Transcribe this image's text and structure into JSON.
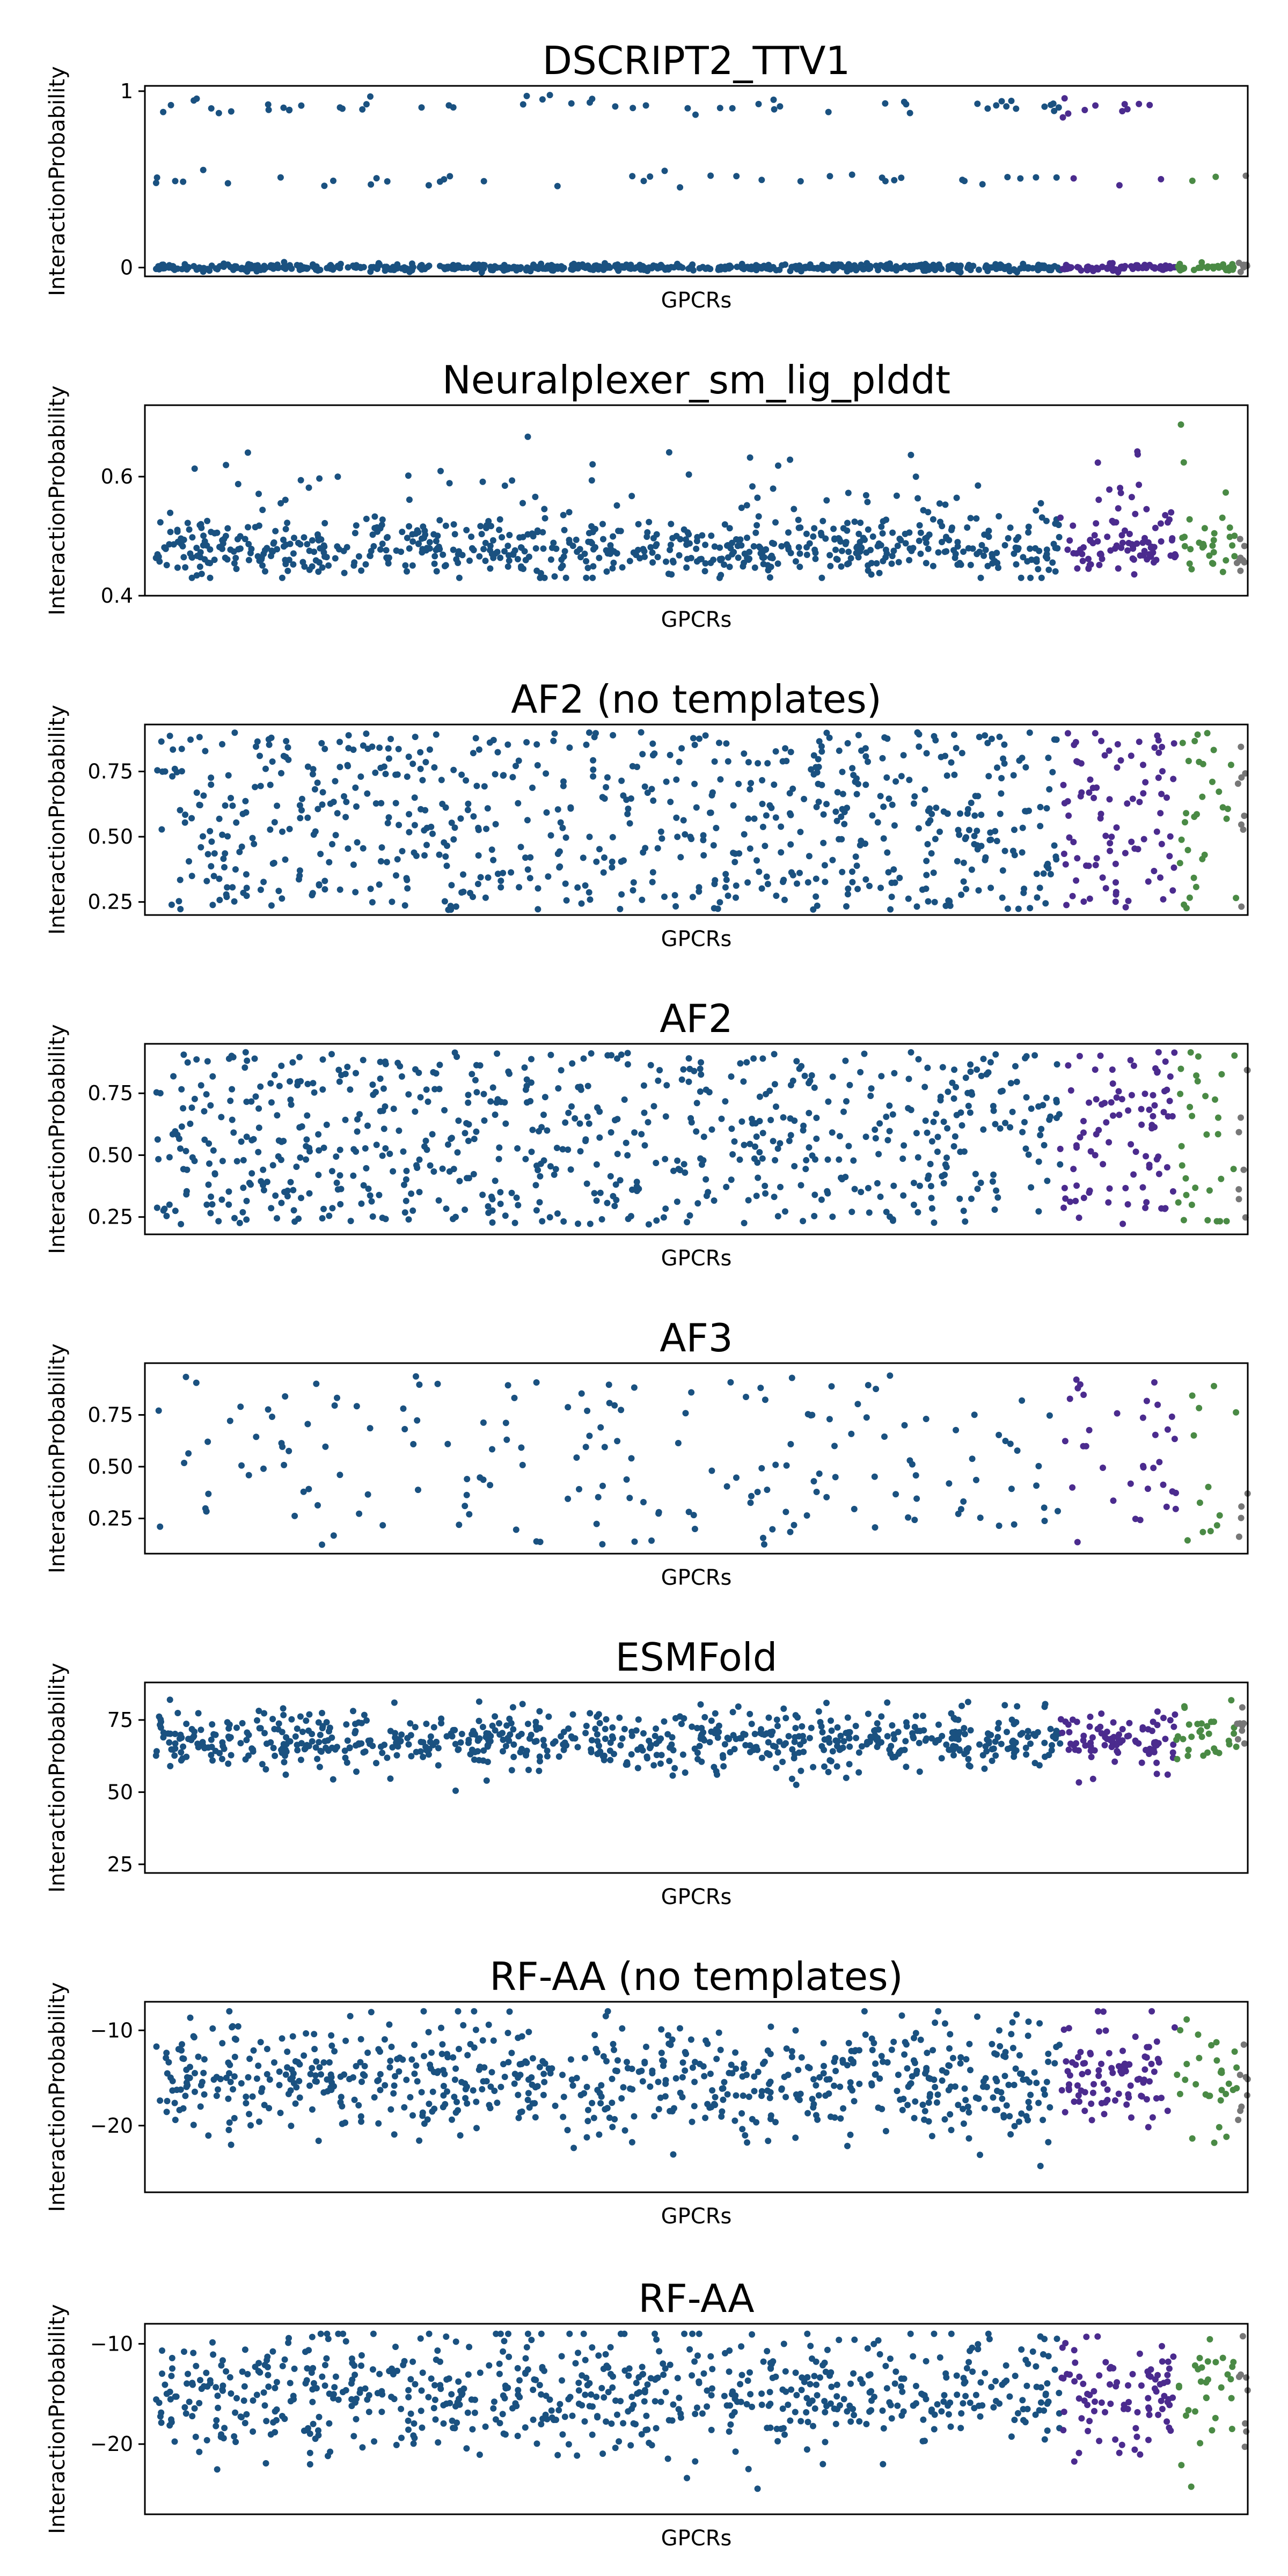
{
  "figure": {
    "panel_count": 8,
    "series_colors": {
      "blue": "#1a5180",
      "purple": "#4b2b8e",
      "green": "#4a8a45",
      "gray": "#777777"
    },
    "point_counts": {
      "blue_dense": 700,
      "blue_sparse": 180,
      "purple_dense": 90,
      "purple_sparse": 35,
      "green_dense": 30,
      "green_sparse": 12,
      "gray_dense": 8,
      "gray_sparse": 4
    }
  },
  "chart_data": [
    {
      "type": "scatter",
      "title": "DSCRIPT2_TTV1",
      "xlabel": "GPCRs",
      "ylabel": "InteractionProbability",
      "ylim": [
        -0.05,
        1.03
      ],
      "yticks": [
        0,
        1
      ],
      "yticklabels": [
        "0",
        "1"
      ],
      "grid": false,
      "legend": "none",
      "x_groups": [
        [
          0,
          1
        ],
        [
          0.83,
          0.935
        ],
        [
          0.935,
          0.99
        ],
        [
          0.99,
          1
        ]
      ],
      "y_dist": "bimodal",
      "y_center": 0.0,
      "y_spread": 0.01,
      "y_high": 0.92,
      "y_mid": 0.5
    },
    {
      "type": "scatter",
      "title": "Neuralplexer_sm_lig_plddt",
      "xlabel": "GPCRs",
      "ylabel": "InteractionProbability",
      "ylim": [
        0.4,
        0.72
      ],
      "yticks": [
        0.4,
        0.6
      ],
      "yticklabels": [
        "0.4",
        "0.6"
      ],
      "grid": false,
      "legend": "none",
      "x_groups": [
        [
          0,
          1
        ],
        [
          0.83,
          0.935
        ],
        [
          0.935,
          0.99
        ],
        [
          0.99,
          1
        ]
      ],
      "y_dist": "skewed",
      "y_center": 0.47,
      "y_spread": 0.06,
      "y_min": 0.43,
      "y_max": 0.7
    },
    {
      "type": "scatter",
      "title": "AF2 (no templates)",
      "xlabel": "GPCRs",
      "ylabel": "InteractionProbability",
      "ylim": [
        0.2,
        0.93
      ],
      "yticks": [
        0.25,
        0.5,
        0.75
      ],
      "yticklabels": [
        "0.25",
        "0.50",
        "0.75"
      ],
      "grid": false,
      "legend": "none",
      "x_groups": [
        [
          0,
          1
        ],
        [
          0.83,
          0.935
        ],
        [
          0.935,
          0.99
        ],
        [
          0.99,
          1
        ]
      ],
      "y_dist": "uniform",
      "y_min": 0.22,
      "y_max": 0.9
    },
    {
      "type": "scatter",
      "title": "AF2",
      "xlabel": "GPCRs",
      "ylabel": "InteractionProbability",
      "ylim": [
        0.18,
        0.95
      ],
      "yticks": [
        0.25,
        0.5,
        0.75
      ],
      "yticklabels": [
        "0.25",
        "0.50",
        "0.75"
      ],
      "grid": false,
      "legend": "none",
      "x_groups": [
        [
          0,
          1
        ],
        [
          0.83,
          0.935
        ],
        [
          0.935,
          0.99
        ],
        [
          0.99,
          1
        ]
      ],
      "y_dist": "uniform",
      "y_min": 0.22,
      "y_max": 0.92
    },
    {
      "type": "scatter",
      "title": "AF3",
      "xlabel": "GPCRs",
      "ylabel": "InteractionProbability",
      "ylim": [
        0.08,
        1.0
      ],
      "yticks": [
        0.25,
        0.5,
        0.75
      ],
      "yticklabels": [
        "0.25",
        "0.50",
        "0.75"
      ],
      "grid": false,
      "legend": "none",
      "x_groups": [
        [
          0,
          1
        ],
        [
          0.83,
          0.935
        ],
        [
          0.935,
          0.99
        ],
        [
          0.99,
          1
        ]
      ],
      "y_dist": "uniform",
      "y_min": 0.12,
      "y_max": 0.95
    },
    {
      "type": "scatter",
      "title": "ESMFold",
      "xlabel": "GPCRs",
      "ylabel": "InteractionProbability",
      "ylim": [
        22,
        88
      ],
      "yticks": [
        25,
        50,
        75
      ],
      "yticklabels": [
        "25",
        "50",
        "75"
      ],
      "grid": false,
      "legend": "none",
      "x_groups": [
        [
          0,
          1
        ],
        [
          0.83,
          0.935
        ],
        [
          0.935,
          0.99
        ],
        [
          0.99,
          1
        ]
      ],
      "y_dist": "normal",
      "y_center": 68,
      "y_spread": 5,
      "y_min": 25,
      "y_max": 85
    },
    {
      "type": "scatter",
      "title": "RF-AA (no templates)",
      "xlabel": "GPCRs",
      "ylabel": "InteractionProbability",
      "ylim": [
        -27,
        -7
      ],
      "yticks": [
        -20,
        -10
      ],
      "yticklabels": [
        "−20",
        "−10"
      ],
      "grid": false,
      "legend": "none",
      "x_groups": [
        [
          0,
          1
        ],
        [
          0.83,
          0.935
        ],
        [
          0.935,
          0.99
        ],
        [
          0.99,
          1
        ]
      ],
      "y_dist": "normal",
      "y_center": -15,
      "y_spread": 3,
      "y_min": -26,
      "y_max": -8
    },
    {
      "type": "scatter",
      "title": "RF-AA",
      "xlabel": "GPCRs",
      "ylabel": "InteractionProbability",
      "ylim": [
        -27,
        -8
      ],
      "yticks": [
        -20,
        -10
      ],
      "yticklabels": [
        "−20",
        "−10"
      ],
      "grid": false,
      "legend": "none",
      "x_groups": [
        [
          0,
          1
        ],
        [
          0.83,
          0.935
        ],
        [
          0.935,
          0.99
        ],
        [
          0.99,
          1
        ]
      ],
      "y_dist": "normal",
      "y_center": -15,
      "y_spread": 3,
      "y_min": -26,
      "y_max": -9
    }
  ]
}
